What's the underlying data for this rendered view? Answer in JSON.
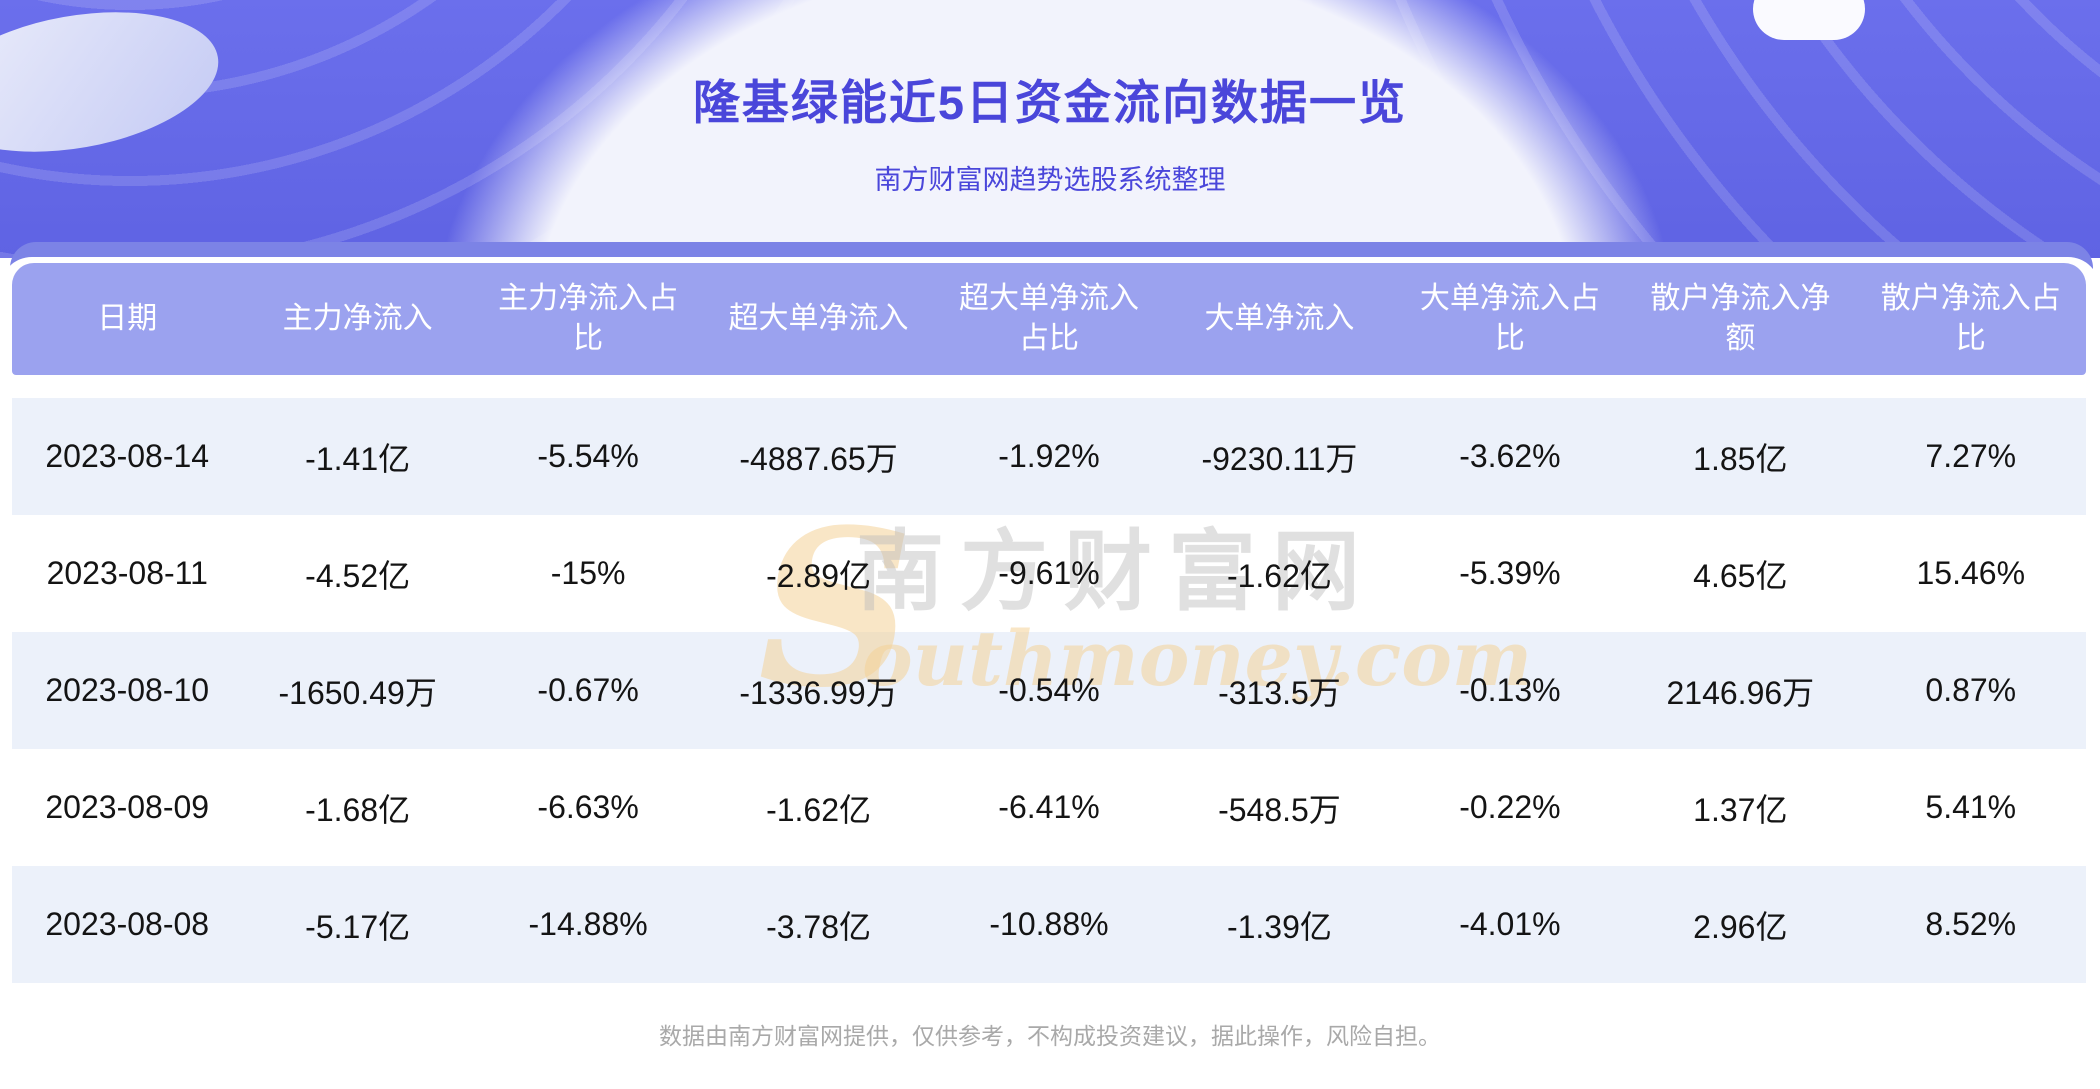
{
  "header": {
    "title": "隆基绿能近5日资金流向数据一览",
    "subtitle": "南方财富网趋势选股系统整理"
  },
  "watermark": {
    "s": "S",
    "cn": "南方财富网",
    "en": "outhmoney.com"
  },
  "table": {
    "columns": [
      "日期",
      "主力净流入",
      "主力净流入占比",
      "超大单净流入",
      "超大单净流入占比",
      "大单净流入",
      "大单净流入占比",
      "散户净流入净额",
      "散户净流入占比"
    ],
    "rows": [
      [
        "2023-08-14",
        "-1.41亿",
        "-5.54%",
        "-4887.65万",
        "-1.92%",
        "-9230.11万",
        "-3.62%",
        "1.85亿",
        "7.27%"
      ],
      [
        "2023-08-11",
        "-4.52亿",
        "-15%",
        "-2.89亿",
        "-9.61%",
        "-1.62亿",
        "-5.39%",
        "4.65亿",
        "15.46%"
      ],
      [
        "2023-08-10",
        "-1650.49万",
        "-0.67%",
        "-1336.99万",
        "-0.54%",
        "-313.5万",
        "-0.13%",
        "2146.96万",
        "0.87%"
      ],
      [
        "2023-08-09",
        "-1.68亿",
        "-6.63%",
        "-1.62亿",
        "-6.41%",
        "-548.5万",
        "-0.22%",
        "1.37亿",
        "5.41%"
      ],
      [
        "2023-08-08",
        "-5.17亿",
        "-14.88%",
        "-3.78亿",
        "-10.88%",
        "-1.39亿",
        "-4.01%",
        "2.96亿",
        "8.52%"
      ]
    ]
  },
  "footer": {
    "note": "数据由南方财富网提供，仅供参考，不构成投资建议，据此操作，风险自担。"
  },
  "colors": {
    "banner": "#6366e8",
    "title_text": "#4a46da",
    "card_strip": "#7c83e6",
    "header_bg": "#9ba2ef",
    "header_text": "#ffffff",
    "row_stripe": "#ecf1fa",
    "body_text": "#141414",
    "footer_text": "#a9a9a9",
    "watermark_tan": "#f4d198"
  },
  "chart_data": {
    "type": "table",
    "title": "隆基绿能近5日资金流向数据一览",
    "subtitle": "南方财富网趋势选股系统整理",
    "columns": [
      "日期",
      "主力净流入",
      "主力净流入占比",
      "超大单净流入",
      "超大单净流入占比",
      "大单净流入",
      "大单净流入占比",
      "散户净流入净额",
      "散户净流入占比"
    ],
    "rows": [
      [
        "2023-08-14",
        "-1.41亿",
        "-5.54%",
        "-4887.65万",
        "-1.92%",
        "-9230.11万",
        "-3.62%",
        "1.85亿",
        "7.27%"
      ],
      [
        "2023-08-11",
        "-4.52亿",
        "-15%",
        "-2.89亿",
        "-9.61%",
        "-1.62亿",
        "-5.39%",
        "4.65亿",
        "15.46%"
      ],
      [
        "2023-08-10",
        "-1650.49万",
        "-0.67%",
        "-1336.99万",
        "-0.54%",
        "-313.5万",
        "-0.13%",
        "2146.96万",
        "0.87%"
      ],
      [
        "2023-08-09",
        "-1.68亿",
        "-6.63%",
        "-1.62亿",
        "-6.41%",
        "-548.5万",
        "-0.22%",
        "1.37亿",
        "5.41%"
      ],
      [
        "2023-08-08",
        "-5.17亿",
        "-14.88%",
        "-3.78亿",
        "-10.88%",
        "-1.39亿",
        "-4.01%",
        "2.96亿",
        "8.52%"
      ]
    ]
  }
}
